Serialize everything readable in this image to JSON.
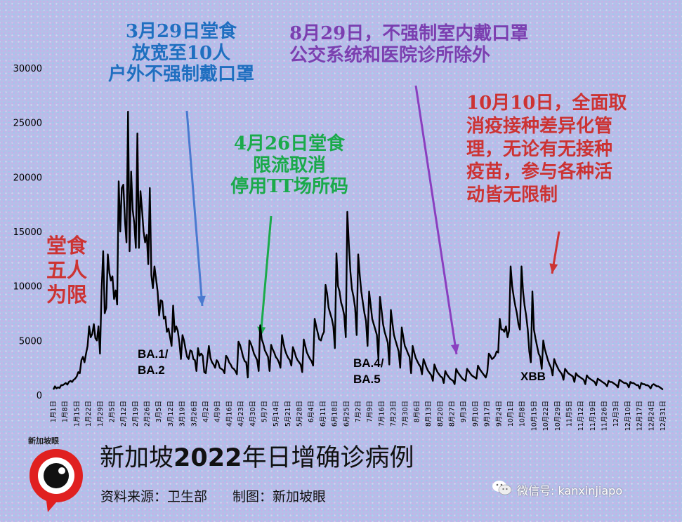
{
  "chart_data": {
    "type": "line",
    "title": "新加坡2022年日增确诊病例",
    "title_parts": {
      "prefix": "新加坡",
      "year": "2022",
      "suffix": "年日增确诊病例"
    },
    "source": "资料来源：卫生部",
    "credit": "制图：新加坡眼",
    "ylim": [
      0,
      30000
    ],
    "yticks": [
      0,
      5000,
      10000,
      15000,
      20000,
      25000,
      30000
    ],
    "xticks": [
      "1月1日",
      "1月8日",
      "1月15日",
      "1月22日",
      "1月29日",
      "2月5日",
      "2月12日",
      "2月19日",
      "2月26日",
      "3月5日",
      "3月12日",
      "3月19日",
      "3月26日",
      "4月2日",
      "4月9日",
      "4月16日",
      "4月23日",
      "4月30日",
      "5月7日",
      "5月14日",
      "5月21日",
      "5月28日",
      "6月4日",
      "6月11日",
      "6月18日",
      "6月25日",
      "7月2日",
      "7月9日",
      "7月16日",
      "7月23日",
      "7月30日",
      "8月6日",
      "8月13日",
      "8月20日",
      "8月27日",
      "9月3日",
      "9月10日",
      "9月17日",
      "9月24日",
      "10月1日",
      "10月8日",
      "10月15日",
      "10月22日",
      "10月29日",
      "11月5日",
      "11月12日",
      "11月19日",
      "11月26日",
      "12月3日",
      "12月10日",
      "12月17日",
      "12月24日",
      "12月31日"
    ],
    "series": [
      {
        "name": "",
        "color": "#000000",
        "values": [
          500,
          800,
          600,
          700,
          650,
          900,
          900,
          1000,
          1100,
          950,
          1200,
          1300,
          1200,
          1400,
          1500,
          1700,
          2100,
          2000,
          3200,
          3500,
          3000,
          3800,
          4500,
          6300,
          5300,
          5600,
          6500,
          5200,
          5000,
          6300,
          3800,
          9500,
          13200,
          7500,
          8000,
          12900,
          11200,
          10500,
          10900,
          8800,
          9600,
          8300,
          19600,
          15000,
          19000,
          19300,
          16000,
          14000,
          26000,
          13200,
          20500,
          17000,
          15800,
          13500,
          24000,
          13500,
          18700,
          17000,
          15000,
          14000,
          14700,
          12000,
          19000,
          11000,
          9800,
          11800,
          10700,
          9500,
          7300,
          8700,
          8600,
          7000,
          7200,
          5800,
          6100,
          5300,
          4500,
          8200,
          5800,
          6300,
          5900,
          4800,
          3300,
          5500,
          5000,
          4200,
          3500,
          3300,
          4100,
          4000,
          3300,
          3200,
          2200,
          4300,
          3600,
          3800,
          3600,
          2100,
          2000,
          3300,
          4500,
          3400,
          3000,
          2800,
          2500,
          3200,
          3000,
          2500,
          2400,
          2300,
          2000,
          3600,
          3400,
          3000,
          2800,
          2500,
          2400,
          2200,
          1900,
          4900,
          4600,
          4100,
          3500,
          3100,
          3000,
          1600,
          5000,
          4700,
          4300,
          3800,
          3500,
          3200,
          2200,
          6400,
          5100,
          4700,
          4100,
          3800,
          3500,
          2200,
          4600,
          4200,
          3900,
          3500,
          3300,
          3000,
          2500,
          5500,
          4700,
          4100,
          3700,
          3400,
          3200,
          2700,
          4400,
          4000,
          3500,
          3200,
          3000,
          2800,
          2100,
          5100,
          4500,
          3900,
          3600,
          3300,
          3100,
          2700,
          7000,
          6300,
          5700,
          5100,
          5000,
          5500,
          5800,
          10100,
          9300,
          8000,
          7500,
          7000,
          6300,
          4300,
          13000,
          10000,
          9500,
          8500,
          8000,
          7300,
          5300,
          16800,
          13800,
          11300,
          9700,
          9000,
          8000,
          5500,
          12900,
          11000,
          9500,
          8500,
          7500,
          6800,
          4500,
          9500,
          8300,
          7000,
          6500,
          6000,
          5500,
          3300,
          9000,
          7800,
          6500,
          5800,
          5300,
          4800,
          2800,
          7800,
          6600,
          5500,
          5000,
          4500,
          4000,
          2500,
          6200,
          5300,
          4500,
          4200,
          3800,
          3500,
          2000,
          4500,
          3900,
          3400,
          3100,
          2800,
          2600,
          1900,
          3300,
          2900,
          2500,
          2200,
          2000,
          1800,
          1300,
          2800,
          2400,
          2100,
          1900,
          1700,
          1600,
          1100,
          2200,
          1900,
          1700,
          1500,
          1400,
          1300,
          1000,
          2400,
          2100,
          1900,
          1700,
          1500,
          1400,
          1300,
          2400,
          2200,
          2000,
          1800,
          1700,
          1600,
          1500,
          2700,
          2400,
          2200,
          2000,
          1800,
          1600,
          2100,
          3800,
          3600,
          3300,
          3400,
          3600,
          4000,
          3900,
          7000,
          6000,
          6000,
          5800,
          6300,
          5300,
          5900,
          11800,
          10000,
          9000,
          8200,
          7500,
          6500,
          6000,
          11800,
          9500,
          8200,
          7300,
          6000,
          4000,
          3000,
          9500,
          6000,
          5200,
          4500,
          3800,
          3500,
          2400,
          5000,
          4200,
          3700,
          3200,
          2800,
          2500,
          1800,
          3300,
          2900,
          2600,
          2300,
          2100,
          1900,
          1400,
          2400,
          2200,
          2000,
          1900,
          1800,
          1700,
          1200,
          2000,
          1800,
          1700,
          1600,
          1500,
          1400,
          1000,
          1800,
          1600,
          1500,
          1400,
          1300,
          1200,
          900,
          1500,
          1400,
          1300,
          1200,
          1100,
          1000,
          800,
          1300,
          1200,
          1200,
          1100,
          1000,
          900,
          700,
          1400,
          1300,
          1200,
          1100,
          1100,
          1000,
          700,
          1200,
          1100,
          1100,
          1000,
          900,
          900,
          600,
          1100,
          1000,
          1000,
          900,
          900,
          800,
          600,
          900,
          1000,
          900,
          800,
          800,
          700,
          600,
          500
        ]
      }
    ],
    "annotations": [
      {
        "id": "dine-five",
        "lines": [
          "堂食",
          "五人",
          "为限"
        ],
        "color": "#cc3333"
      },
      {
        "id": "mar29",
        "lines": [
          "3月29日堂食",
          "放宽至10人",
          "户外不强制戴口罩"
        ],
        "color": "#1f6fc0"
      },
      {
        "id": "apr26",
        "lines": [
          "4月26日堂食",
          "限流取消",
          "停用TT场所码"
        ],
        "color": "#1aaa4a"
      },
      {
        "id": "aug29",
        "lines": [
          "8月29日，不强制室内戴口罩",
          "公交系统和医院诊所除外"
        ],
        "color": "#7b3fb0"
      },
      {
        "id": "oct10",
        "lines": [
          "10月10日，全面取",
          "消疫接种差异化管",
          "理，无论有无接种",
          "疫苗，参与各种活",
          "动皆无限制"
        ],
        "color": "#cc3333"
      }
    ],
    "variant_labels": [
      {
        "id": "ba12",
        "lines": [
          "BA.1/",
          "BA.2"
        ]
      },
      {
        "id": "ba45",
        "lines": [
          "BA.4/",
          "BA.5"
        ]
      },
      {
        "id": "xbb",
        "lines": [
          "XBB"
        ]
      }
    ],
    "grid": false,
    "legend": "none"
  },
  "branding": {
    "logo_text": "新加坡眼",
    "wechat": "微信号: kanxinjiapo"
  }
}
